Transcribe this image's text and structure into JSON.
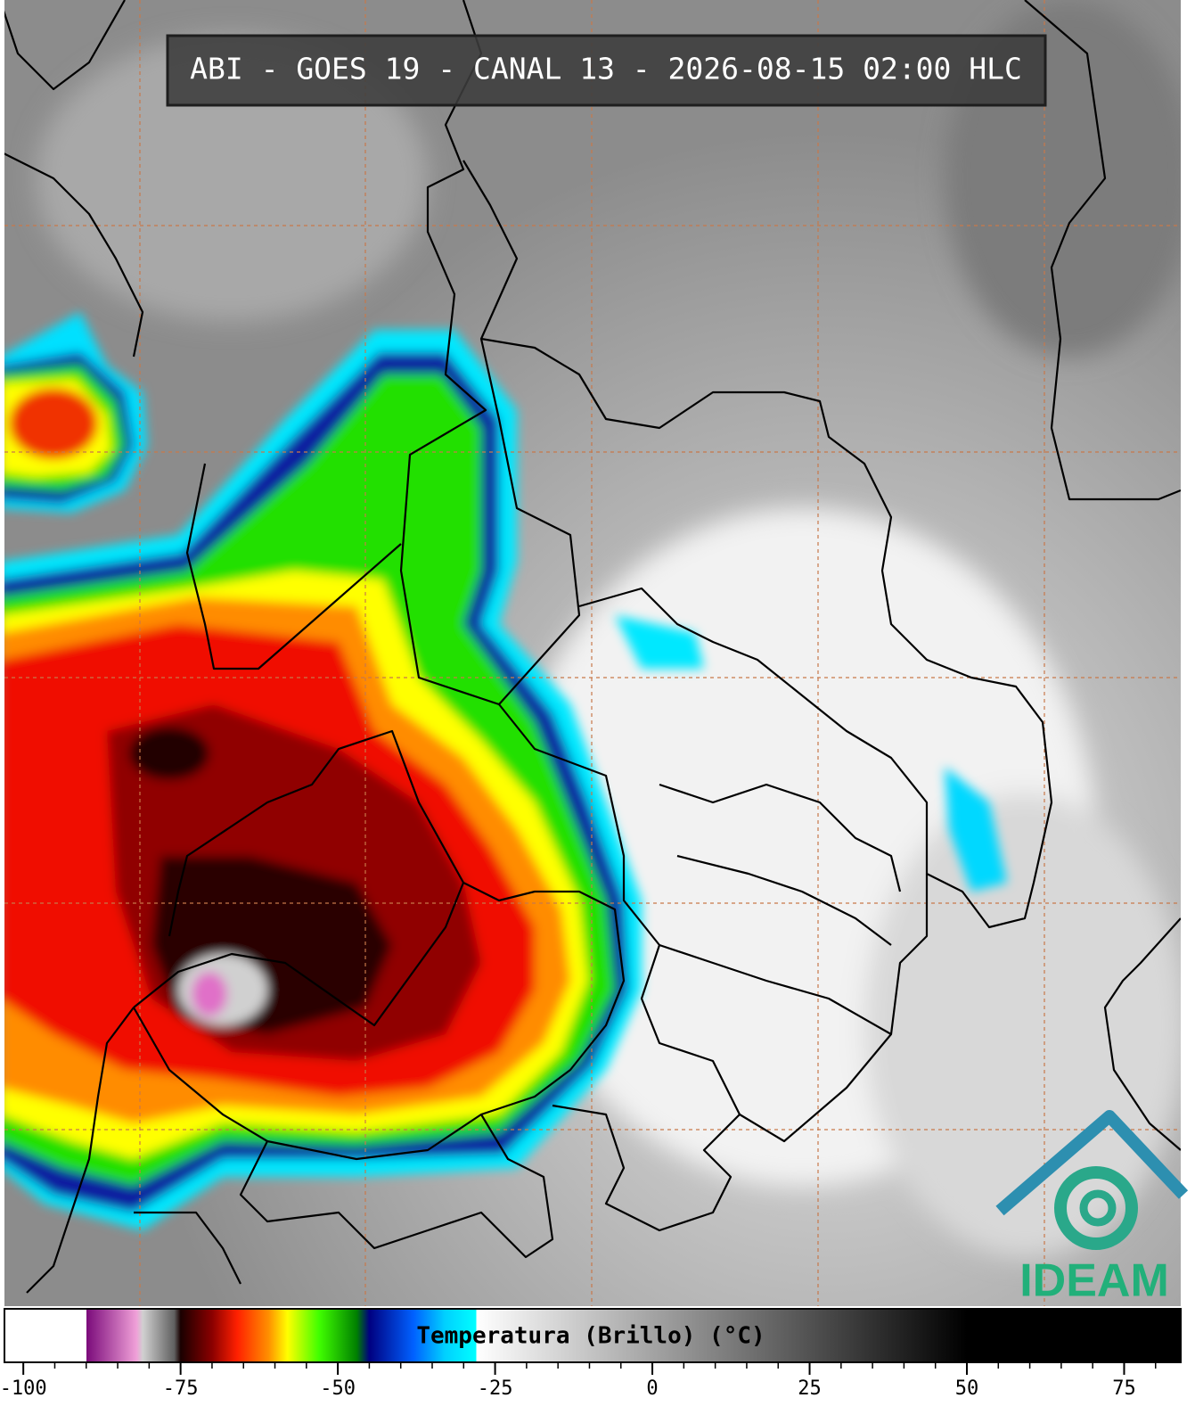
{
  "title": "ABI - GOES 19 - CANAL 13 - 2026-08-15 02:00 HLC",
  "colorbar": {
    "label": "Temperatura (Brillo) (°C)",
    "range": [
      -103,
      84
    ],
    "ticks": [
      -100,
      -75,
      -50,
      -25,
      0,
      25,
      50,
      75
    ],
    "minor_tick_step": 5,
    "stops": [
      {
        "value": -103,
        "color": "#ffffff"
      },
      {
        "value": -90,
        "color": "#ffffff"
      },
      {
        "value": -90,
        "color": "#7a0a7a"
      },
      {
        "value": -82,
        "color": "#f0a0d8"
      },
      {
        "value": -81,
        "color": "#d0d0d0"
      },
      {
        "value": -76,
        "color": "#606060"
      },
      {
        "value": -75,
        "color": "#1a0000"
      },
      {
        "value": -70,
        "color": "#8a0000"
      },
      {
        "value": -66,
        "color": "#ff2000"
      },
      {
        "value": -61,
        "color": "#ff9000"
      },
      {
        "value": -58,
        "color": "#ffff00"
      },
      {
        "value": -53,
        "color": "#40ff00"
      },
      {
        "value": -47,
        "color": "#008000"
      },
      {
        "value": -45,
        "color": "#000080"
      },
      {
        "value": -38,
        "color": "#0060ff"
      },
      {
        "value": -33,
        "color": "#00d0ff"
      },
      {
        "value": -28,
        "color": "#00ffff"
      },
      {
        "value": -28,
        "color": "#ffffff"
      },
      {
        "value": 50,
        "color": "#000000"
      },
      {
        "value": 84,
        "color": "#000000"
      }
    ]
  },
  "logo": {
    "text": "IDEAM"
  }
}
